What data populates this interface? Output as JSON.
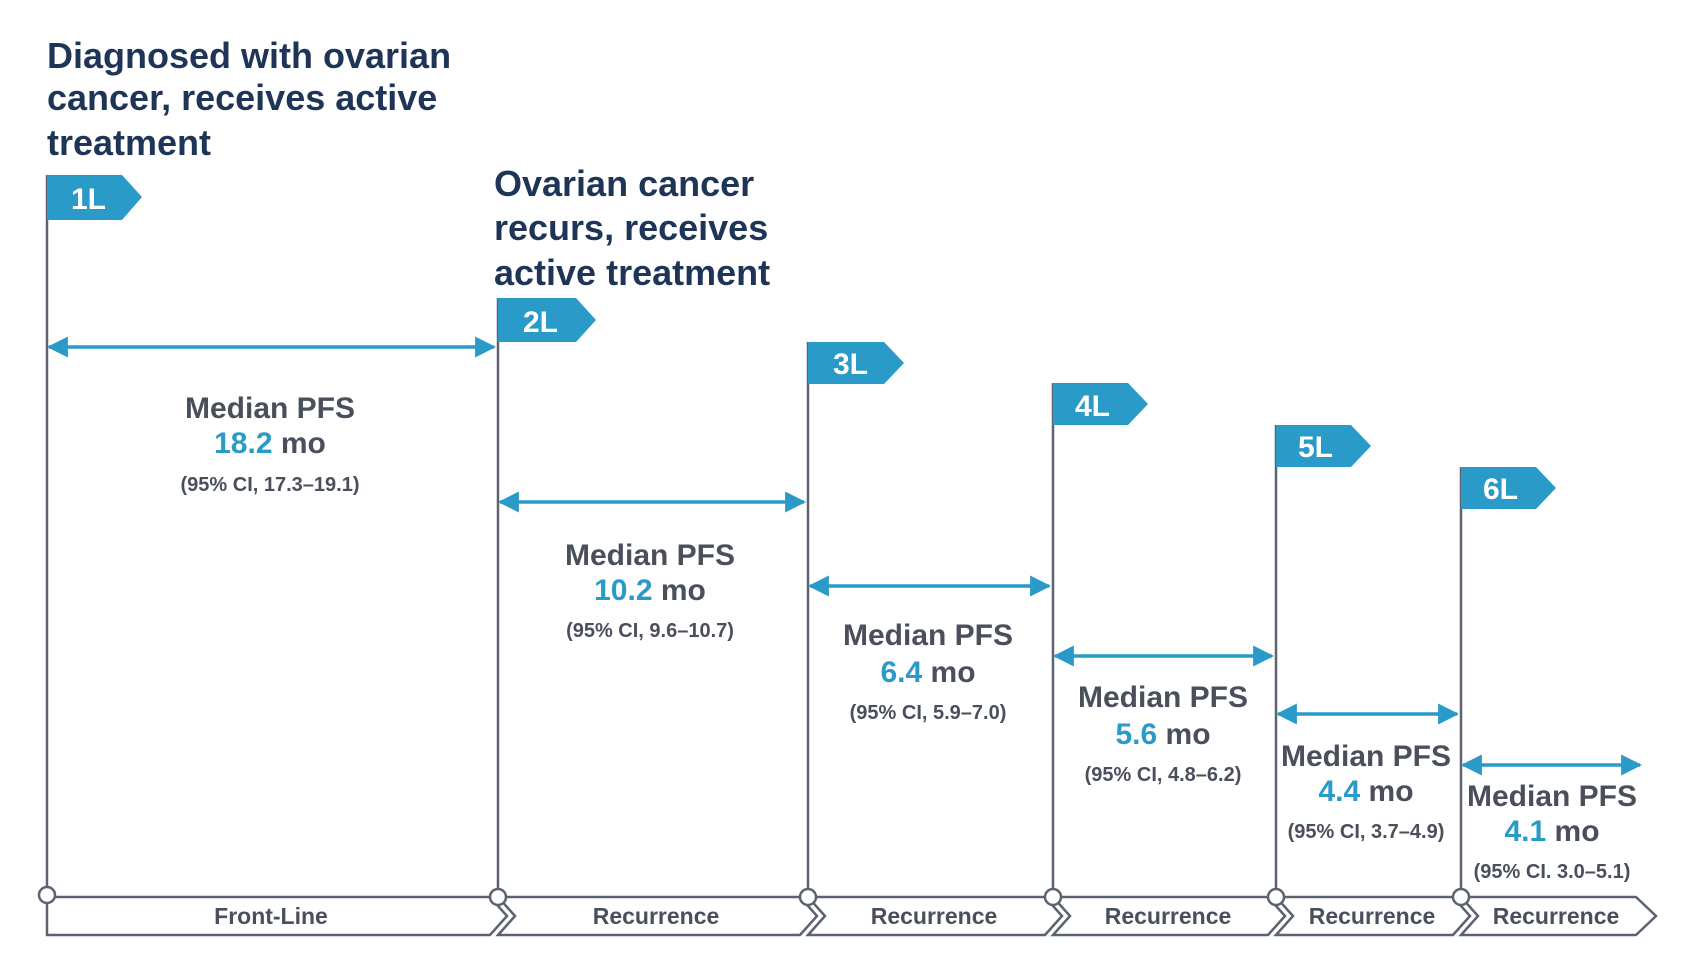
{
  "headlines": {
    "diagnosed": [
      "Diagnosed with ovarian",
      "cancer, receives active",
      "treatment"
    ],
    "recurs": [
      "Ovarian cancer",
      "recurs, receives",
      "active treatment"
    ]
  },
  "lines": [
    {
      "tag": "1L",
      "pfs_label": "Median PFS",
      "pfs_value": "18.2",
      "pfs_unit": " mo",
      "ci": "(95% CI, 17.3–19.1)",
      "phase": "Front-Line"
    },
    {
      "tag": "2L",
      "pfs_label": "Median PFS",
      "pfs_value": "10.2",
      "pfs_unit": " mo",
      "ci": "(95% CI, 9.6–10.7)",
      "phase": "Recurrence"
    },
    {
      "tag": "3L",
      "pfs_label": "Median PFS",
      "pfs_value": "6.4",
      "pfs_unit": " mo",
      "ci": "(95% CI, 5.9–7.0)",
      "phase": "Recurrence"
    },
    {
      "tag": "4L",
      "pfs_label": "Median PFS",
      "pfs_value": "5.6",
      "pfs_unit": " mo",
      "ci": "(95% CI, 4.8–6.2)",
      "phase": "Recurrence"
    },
    {
      "tag": "5L",
      "pfs_label": "Median PFS",
      "pfs_value": "4.4",
      "pfs_unit": " mo",
      "ci": "(95% CI, 3.7–4.9)",
      "phase": "Recurrence"
    },
    {
      "tag": "6L",
      "pfs_label": "Median PFS",
      "pfs_value": "4.1",
      "pfs_unit": " mo",
      "ci": "(95% CI. 3.0–5.1)",
      "phase": "Recurrence"
    }
  ],
  "colors": {
    "accent": "#2a9ac9",
    "navy": "#1f3558",
    "gray_text": "#4a4f5c",
    "line": "#5b6270"
  }
}
